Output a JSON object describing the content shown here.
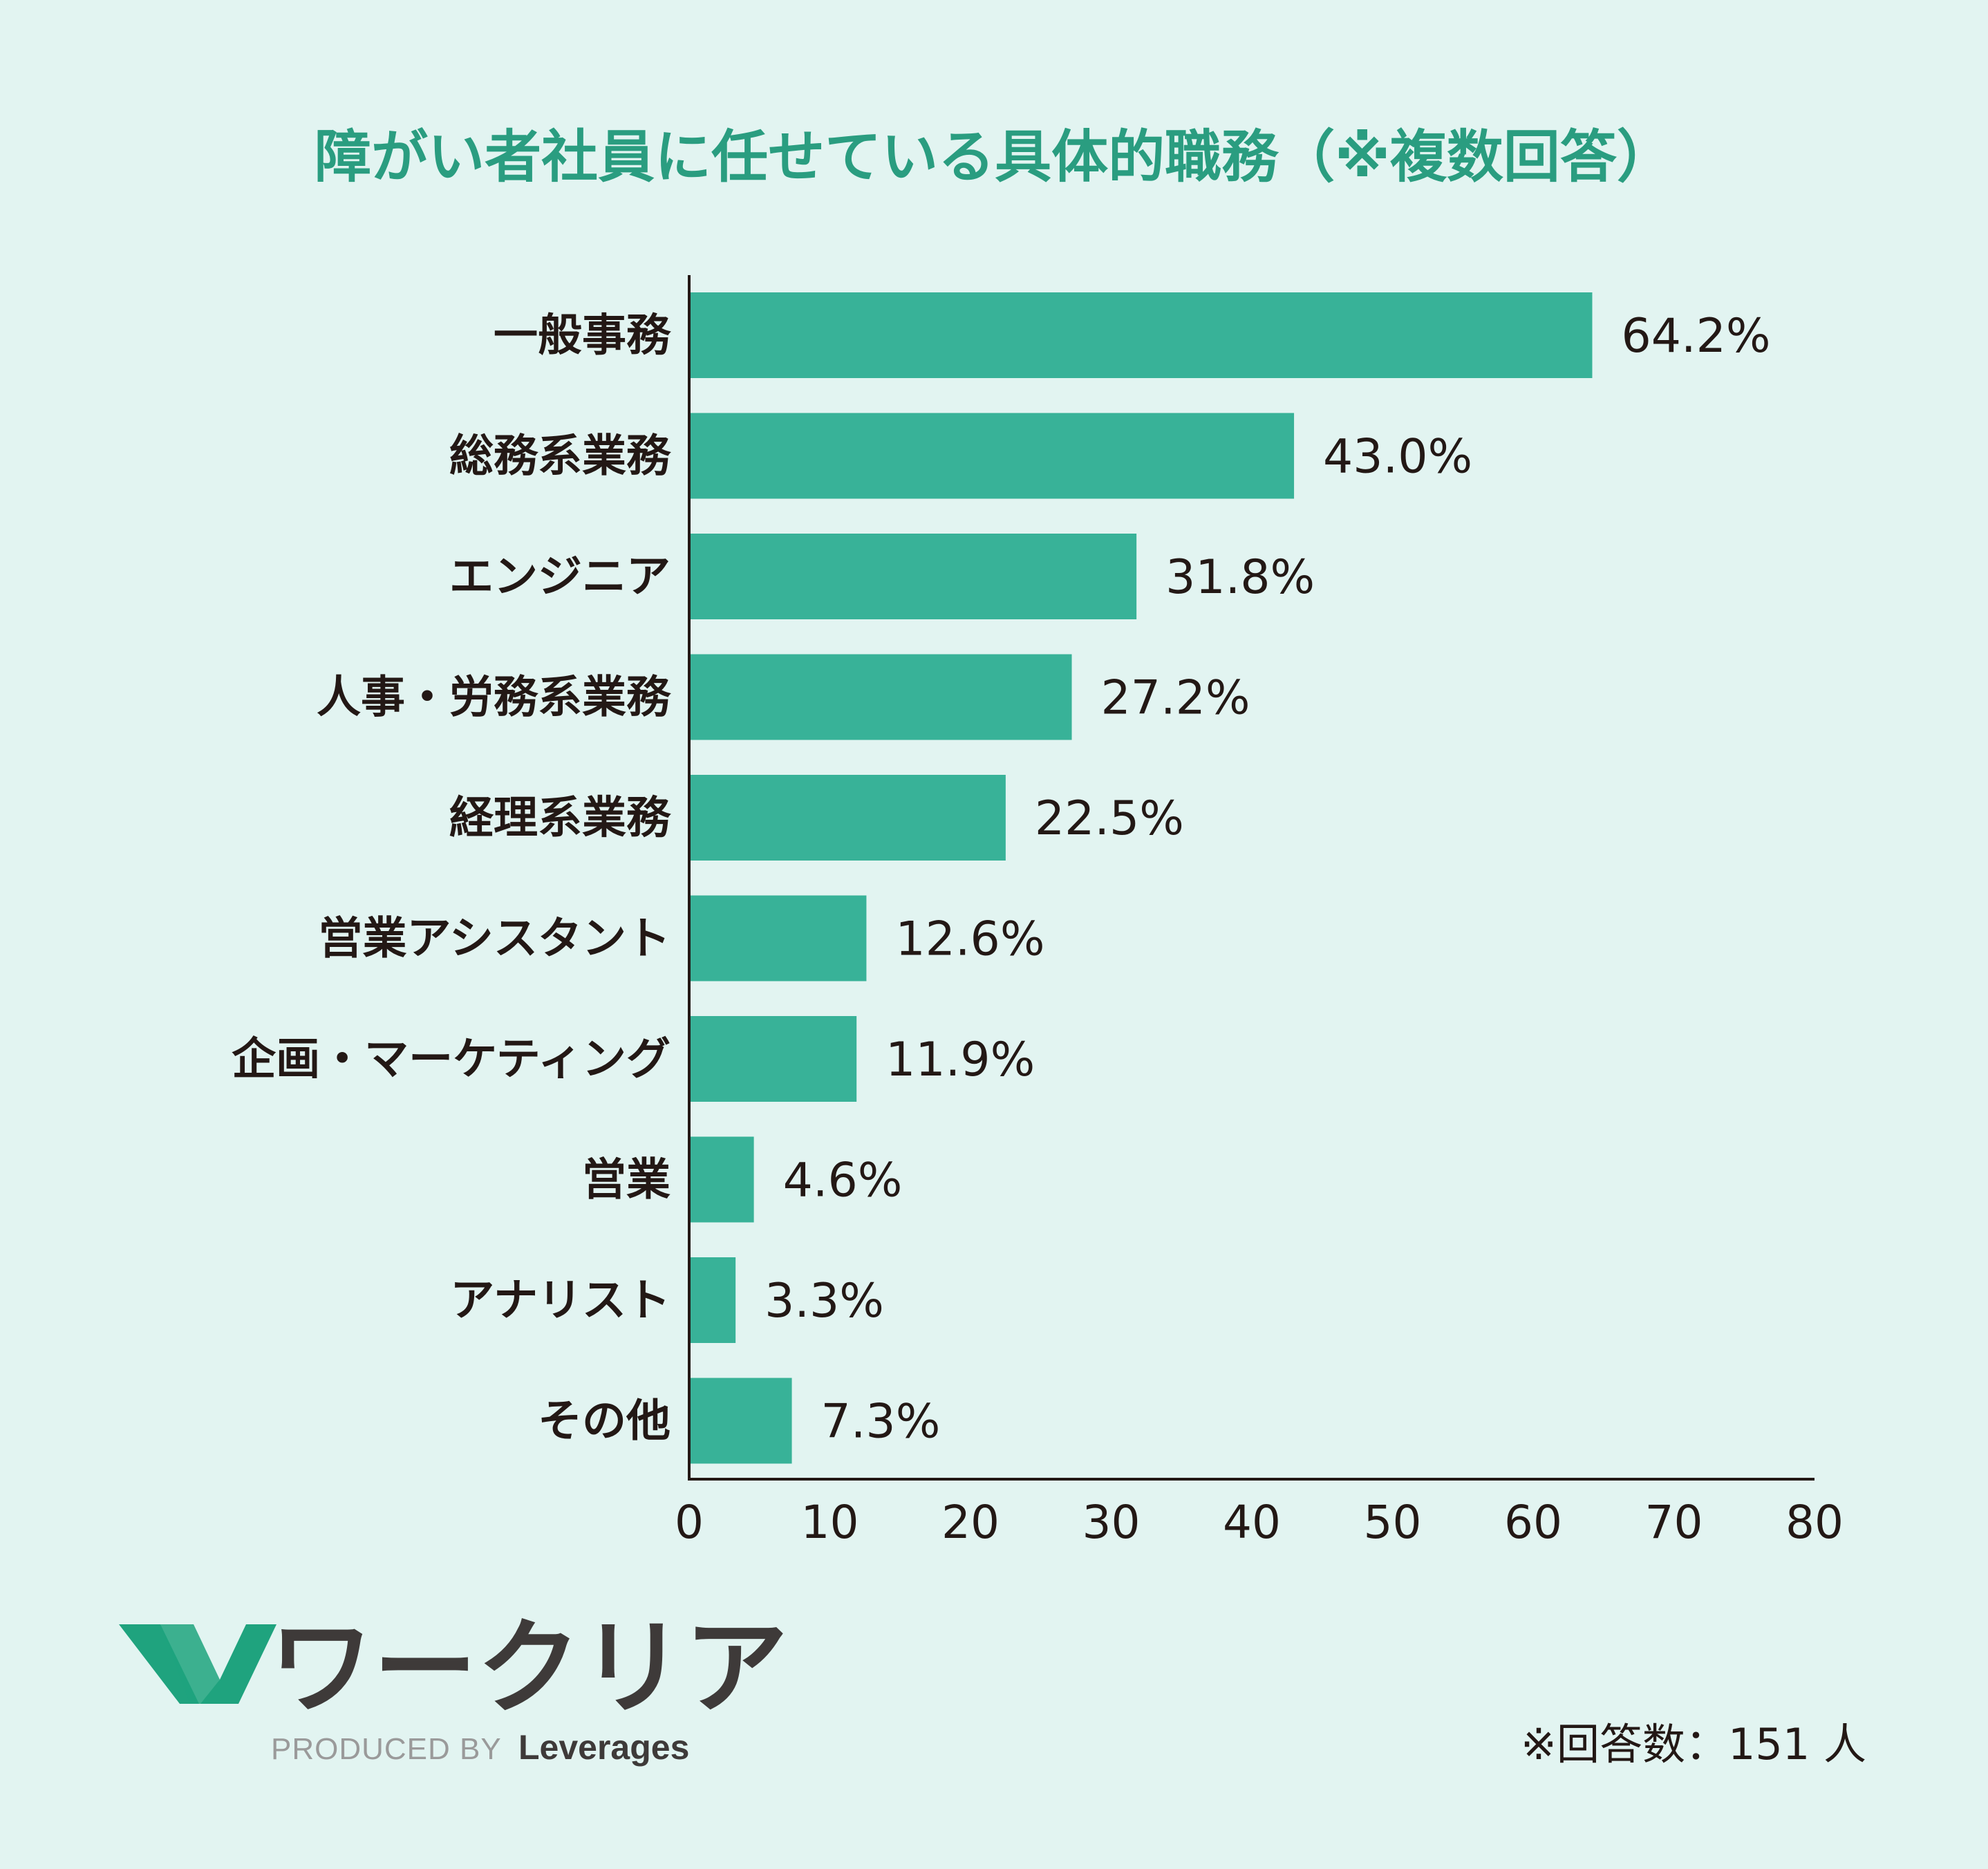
{
  "colors": {
    "background": "#e2f4f1",
    "bar": "#38b298",
    "title": "#2a9d80",
    "text": "#231815",
    "logo_green": "#1fa37e",
    "logo_dark": "#3e3a39"
  },
  "chart_data": {
    "type": "bar",
    "orientation": "horizontal",
    "title": "障がい者社員に任せている具体的職務（※複数回答）",
    "categories": [
      "一般事務",
      "総務系業務",
      "エンジニア",
      "人事・労務系業務",
      "経理系業務",
      "営業アシスタント",
      "企画・マーケティング",
      "営業",
      "アナリスト",
      "その他"
    ],
    "values": [
      64.2,
      43.0,
      31.8,
      27.2,
      22.5,
      12.6,
      11.9,
      4.6,
      3.3,
      7.3
    ],
    "value_labels": [
      "64.2%",
      "43.0%",
      "31.8%",
      "27.2%",
      "22.5%",
      "12.6%",
      "11.9%",
      "4.6%",
      "3.3%",
      "7.3%"
    ],
    "xlim": [
      0,
      80
    ],
    "xticks": [
      "0",
      "10",
      "20",
      "30",
      "40",
      "50",
      "60",
      "70",
      "80"
    ],
    "xlabel": "",
    "ylabel": "",
    "grid": false
  },
  "logo": {
    "name": "ワークリア",
    "produced_by": "PRODUCED BY",
    "company": "Leverages"
  },
  "note": "※回答数：151 人"
}
